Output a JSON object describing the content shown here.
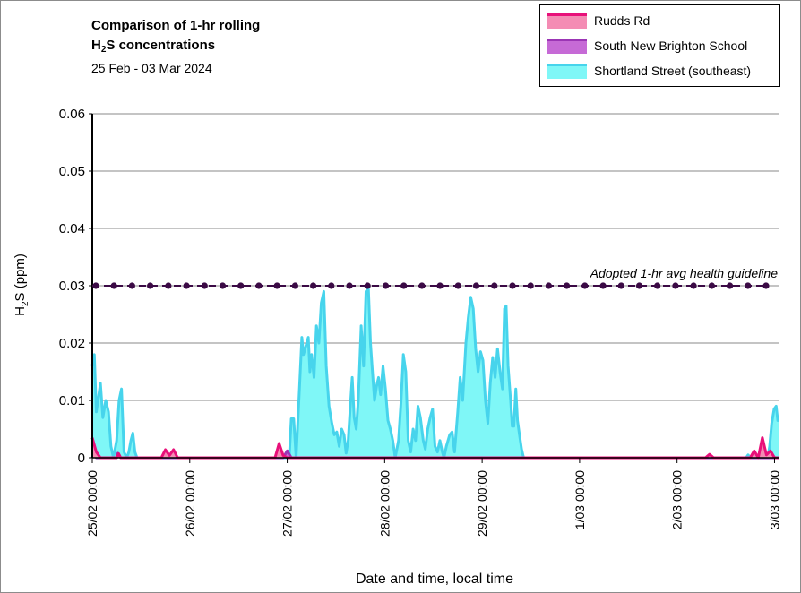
{
  "chart_data": {
    "type": "area",
    "title_line1": "Comparison of 1-hr rolling",
    "title_line2_prefix": "H",
    "title_line2_sub": "2",
    "title_line2_suffix": "S concentrations",
    "date_range": "25 Feb - 03 Mar 2024",
    "xlabel": "Date and time, local time",
    "ylabel_prefix": "H",
    "ylabel_sub": "2",
    "ylabel_suffix": "S (ppm)",
    "ylim": [
      0,
      0.06
    ],
    "y_ticks": [
      "0",
      "0.01",
      "0.02",
      "0.03",
      "0.04",
      "0.05",
      "0.06"
    ],
    "y_tick_values": [
      0,
      0.01,
      0.02,
      0.03,
      0.04,
      0.05,
      0.06
    ],
    "x_tick_labels": [
      "25/02 00:00",
      "26/02 00:00",
      "27/02 00:00",
      "28/02 00:00",
      "29/02 00:00",
      "1/03 00:00",
      "2/03 00:00",
      "3/03 00:00"
    ],
    "x_tick_hours": [
      0,
      24,
      48,
      72,
      96,
      120,
      144,
      168
    ],
    "xlim_hours": [
      0,
      169
    ],
    "grid": "horizontal",
    "legend_position": "top-right",
    "guideline": {
      "label": "Adopted 1-hr avg health guideline",
      "value": 0.03,
      "color": "#3b0a45",
      "marker_count": 38
    },
    "series": [
      {
        "name": "Rudds Rd",
        "fill": "#f48cb4",
        "stroke": "#e8107a",
        "points": [
          [
            0,
            0.0035
          ],
          [
            1,
            0.001
          ],
          [
            2,
            0
          ],
          [
            6,
            0
          ],
          [
            6.5,
            0.0007
          ],
          [
            7,
            0
          ],
          [
            17,
            0
          ],
          [
            18,
            0.0014
          ],
          [
            19,
            0.0004
          ],
          [
            20,
            0.0014
          ],
          [
            21,
            0
          ],
          [
            45,
            0
          ],
          [
            46,
            0.0025
          ],
          [
            47,
            0.0004
          ],
          [
            48,
            0
          ],
          [
            151,
            0
          ],
          [
            152,
            0.0006
          ],
          [
            153,
            0
          ],
          [
            162,
            0
          ],
          [
            163,
            0.0012
          ],
          [
            164,
            0
          ],
          [
            165,
            0.0035
          ],
          [
            166,
            0.0005
          ],
          [
            167,
            0.0012
          ],
          [
            168,
            0
          ],
          [
            169,
            0
          ]
        ]
      },
      {
        "name": "South New Brighton School",
        "fill": "#c66ad6",
        "stroke": "#9b35b5",
        "points": [
          [
            0,
            0
          ],
          [
            0.5,
            0.0008
          ],
          [
            1,
            0
          ],
          [
            6,
            0
          ],
          [
            6.3,
            0.0008
          ],
          [
            7,
            0
          ],
          [
            47,
            0
          ],
          [
            48,
            0.0012
          ],
          [
            49,
            0
          ],
          [
            169,
            0
          ]
        ]
      },
      {
        "name": "Shortland Street (southeast)",
        "fill": "#7ff7f7",
        "stroke": "#47d4ec",
        "points": [
          [
            0,
            0.016
          ],
          [
            0.5,
            0.018
          ],
          [
            1,
            0.008
          ],
          [
            2,
            0.013
          ],
          [
            2.6,
            0.007
          ],
          [
            3.3,
            0.01
          ],
          [
            4,
            0.008
          ],
          [
            4.6,
            0.002
          ],
          [
            5.2,
            0
          ],
          [
            6,
            0.003
          ],
          [
            6.6,
            0.01
          ],
          [
            7.2,
            0.012
          ],
          [
            7.8,
            0.001
          ],
          [
            8.5,
            0
          ],
          [
            9,
            0.001
          ],
          [
            9.5,
            0.003
          ],
          [
            10,
            0.0043
          ],
          [
            10.5,
            0.001
          ],
          [
            11,
            0
          ],
          [
            48.5,
            0
          ],
          [
            49,
            0.0068
          ],
          [
            49.6,
            0.0068
          ],
          [
            50.2,
            0
          ],
          [
            51,
            0.012
          ],
          [
            51.6,
            0.021
          ],
          [
            52,
            0.018
          ],
          [
            52.6,
            0.0195
          ],
          [
            53.2,
            0.021
          ],
          [
            53.6,
            0.015
          ],
          [
            54,
            0.018
          ],
          [
            54.6,
            0.014
          ],
          [
            55.2,
            0.023
          ],
          [
            55.8,
            0.02
          ],
          [
            56.4,
            0.027
          ],
          [
            57,
            0.029
          ],
          [
            57.6,
            0.016
          ],
          [
            58.3,
            0.009
          ],
          [
            59,
            0.006
          ],
          [
            59.6,
            0.004
          ],
          [
            60.2,
            0.0045
          ],
          [
            60.8,
            0.002
          ],
          [
            61.4,
            0.005
          ],
          [
            62,
            0.004
          ],
          [
            62.5,
            0.0008
          ],
          [
            63,
            0.003
          ],
          [
            63.5,
            0.0085
          ],
          [
            64,
            0.014
          ],
          [
            64.5,
            0.007
          ],
          [
            65,
            0.005
          ],
          [
            65.5,
            0.01
          ],
          [
            66.2,
            0.023
          ],
          [
            66.8,
            0.016
          ],
          [
            67.4,
            0.029
          ],
          [
            68,
            0.0295
          ],
          [
            68.5,
            0.02
          ],
          [
            69,
            0.015
          ],
          [
            69.5,
            0.01
          ],
          [
            70,
            0.0125
          ],
          [
            70.5,
            0.014
          ],
          [
            71,
            0.011
          ],
          [
            71.6,
            0.016
          ],
          [
            72.2,
            0.012
          ],
          [
            72.8,
            0.0065
          ],
          [
            73.4,
            0.005
          ],
          [
            74,
            0.003
          ],
          [
            74.6,
            0
          ],
          [
            75.4,
            0.003
          ],
          [
            76,
            0.0095
          ],
          [
            76.6,
            0.018
          ],
          [
            77.2,
            0.015
          ],
          [
            77.8,
            0.003
          ],
          [
            78.4,
            0.001
          ],
          [
            79,
            0.005
          ],
          [
            79.6,
            0.003
          ],
          [
            80.2,
            0.009
          ],
          [
            80.8,
            0.007
          ],
          [
            81.5,
            0.003
          ],
          [
            82,
            0.0015
          ],
          [
            82.6,
            0.005
          ],
          [
            83.2,
            0.007
          ],
          [
            83.8,
            0.0085
          ],
          [
            84.4,
            0.002
          ],
          [
            85,
            0.001
          ],
          [
            85.6,
            0.003
          ],
          [
            86.2,
            0.001
          ],
          [
            86.6,
            0
          ],
          [
            87.2,
            0.002
          ],
          [
            88,
            0.004
          ],
          [
            88.6,
            0.0045
          ],
          [
            89.2,
            0.001
          ],
          [
            90,
            0.008
          ],
          [
            90.6,
            0.014
          ],
          [
            91.2,
            0.01
          ],
          [
            92,
            0.02
          ],
          [
            92.6,
            0.0245
          ],
          [
            93.2,
            0.028
          ],
          [
            93.8,
            0.026
          ],
          [
            94.4,
            0.019
          ],
          [
            95,
            0.015
          ],
          [
            95.6,
            0.0185
          ],
          [
            96.2,
            0.017
          ],
          [
            96.8,
            0.01
          ],
          [
            97.4,
            0.006
          ],
          [
            98,
            0.013
          ],
          [
            98.6,
            0.0175
          ],
          [
            99.2,
            0.014
          ],
          [
            99.8,
            0.019
          ],
          [
            100.4,
            0.015
          ],
          [
            101,
            0.012
          ],
          [
            101.5,
            0.026
          ],
          [
            101.9,
            0.0265
          ],
          [
            102.4,
            0.016
          ],
          [
            103,
            0.01
          ],
          [
            103.4,
            0.0055
          ],
          [
            103.8,
            0.0055
          ],
          [
            104.3,
            0.012
          ],
          [
            104.7,
            0.0065
          ],
          [
            105.2,
            0.004
          ],
          [
            105.7,
            0.0015
          ],
          [
            106.2,
            0
          ],
          [
            161,
            0
          ],
          [
            161.5,
            0.0005
          ],
          [
            162,
            0
          ],
          [
            166.3,
            0
          ],
          [
            166.8,
            0.002
          ],
          [
            167.3,
            0.006
          ],
          [
            167.9,
            0.0085
          ],
          [
            168.4,
            0.009
          ],
          [
            168.8,
            0.0065
          ],
          [
            169,
            0.0065
          ]
        ]
      }
    ]
  }
}
